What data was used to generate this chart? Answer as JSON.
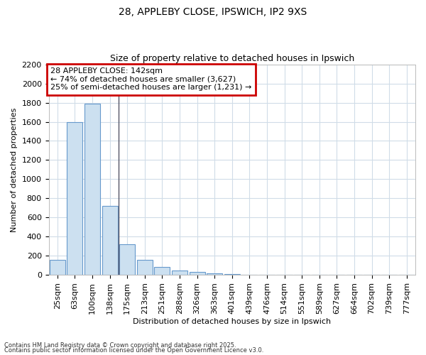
{
  "title1": "28, APPLEBY CLOSE, IPSWICH, IP2 9XS",
  "title2": "Size of property relative to detached houses in Ipswich",
  "xlabel": "Distribution of detached houses by size in Ipswich",
  "ylabel": "Number of detached properties",
  "bar_labels": [
    "25sqm",
    "63sqm",
    "100sqm",
    "138sqm",
    "175sqm",
    "213sqm",
    "251sqm",
    "288sqm",
    "326sqm",
    "363sqm",
    "401sqm",
    "439sqm",
    "476sqm",
    "514sqm",
    "551sqm",
    "589sqm",
    "627sqm",
    "664sqm",
    "702sqm",
    "739sqm",
    "777sqm"
  ],
  "bar_values": [
    160,
    1600,
    1790,
    720,
    320,
    155,
    85,
    45,
    30,
    15,
    5,
    2,
    0,
    0,
    0,
    0,
    0,
    0,
    0,
    0,
    0
  ],
  "bar_color": "#cce0f0",
  "bar_edge_color": "#6699cc",
  "vline_x": 3.5,
  "vline_color": "#555566",
  "annotation_line1": "28 APPLEBY CLOSE: 142sqm",
  "annotation_line2": "← 74% of detached houses are smaller (3,627)",
  "annotation_line3": "25% of semi-detached houses are larger (1,231) →",
  "annotation_box_edgecolor": "#cc0000",
  "ylim_max": 2200,
  "yticks": [
    0,
    200,
    400,
    600,
    800,
    1000,
    1200,
    1400,
    1600,
    1800,
    2000,
    2200
  ],
  "bg_color": "#ffffff",
  "grid_color": "#d0dce8",
  "footer1": "Contains HM Land Registry data © Crown copyright and database right 2025.",
  "footer2": "Contains public sector information licensed under the Open Government Licence v3.0.",
  "title_fontsize": 10,
  "subtitle_fontsize": 9,
  "axis_label_fontsize": 8,
  "tick_fontsize": 8,
  "annot_fontsize": 8
}
